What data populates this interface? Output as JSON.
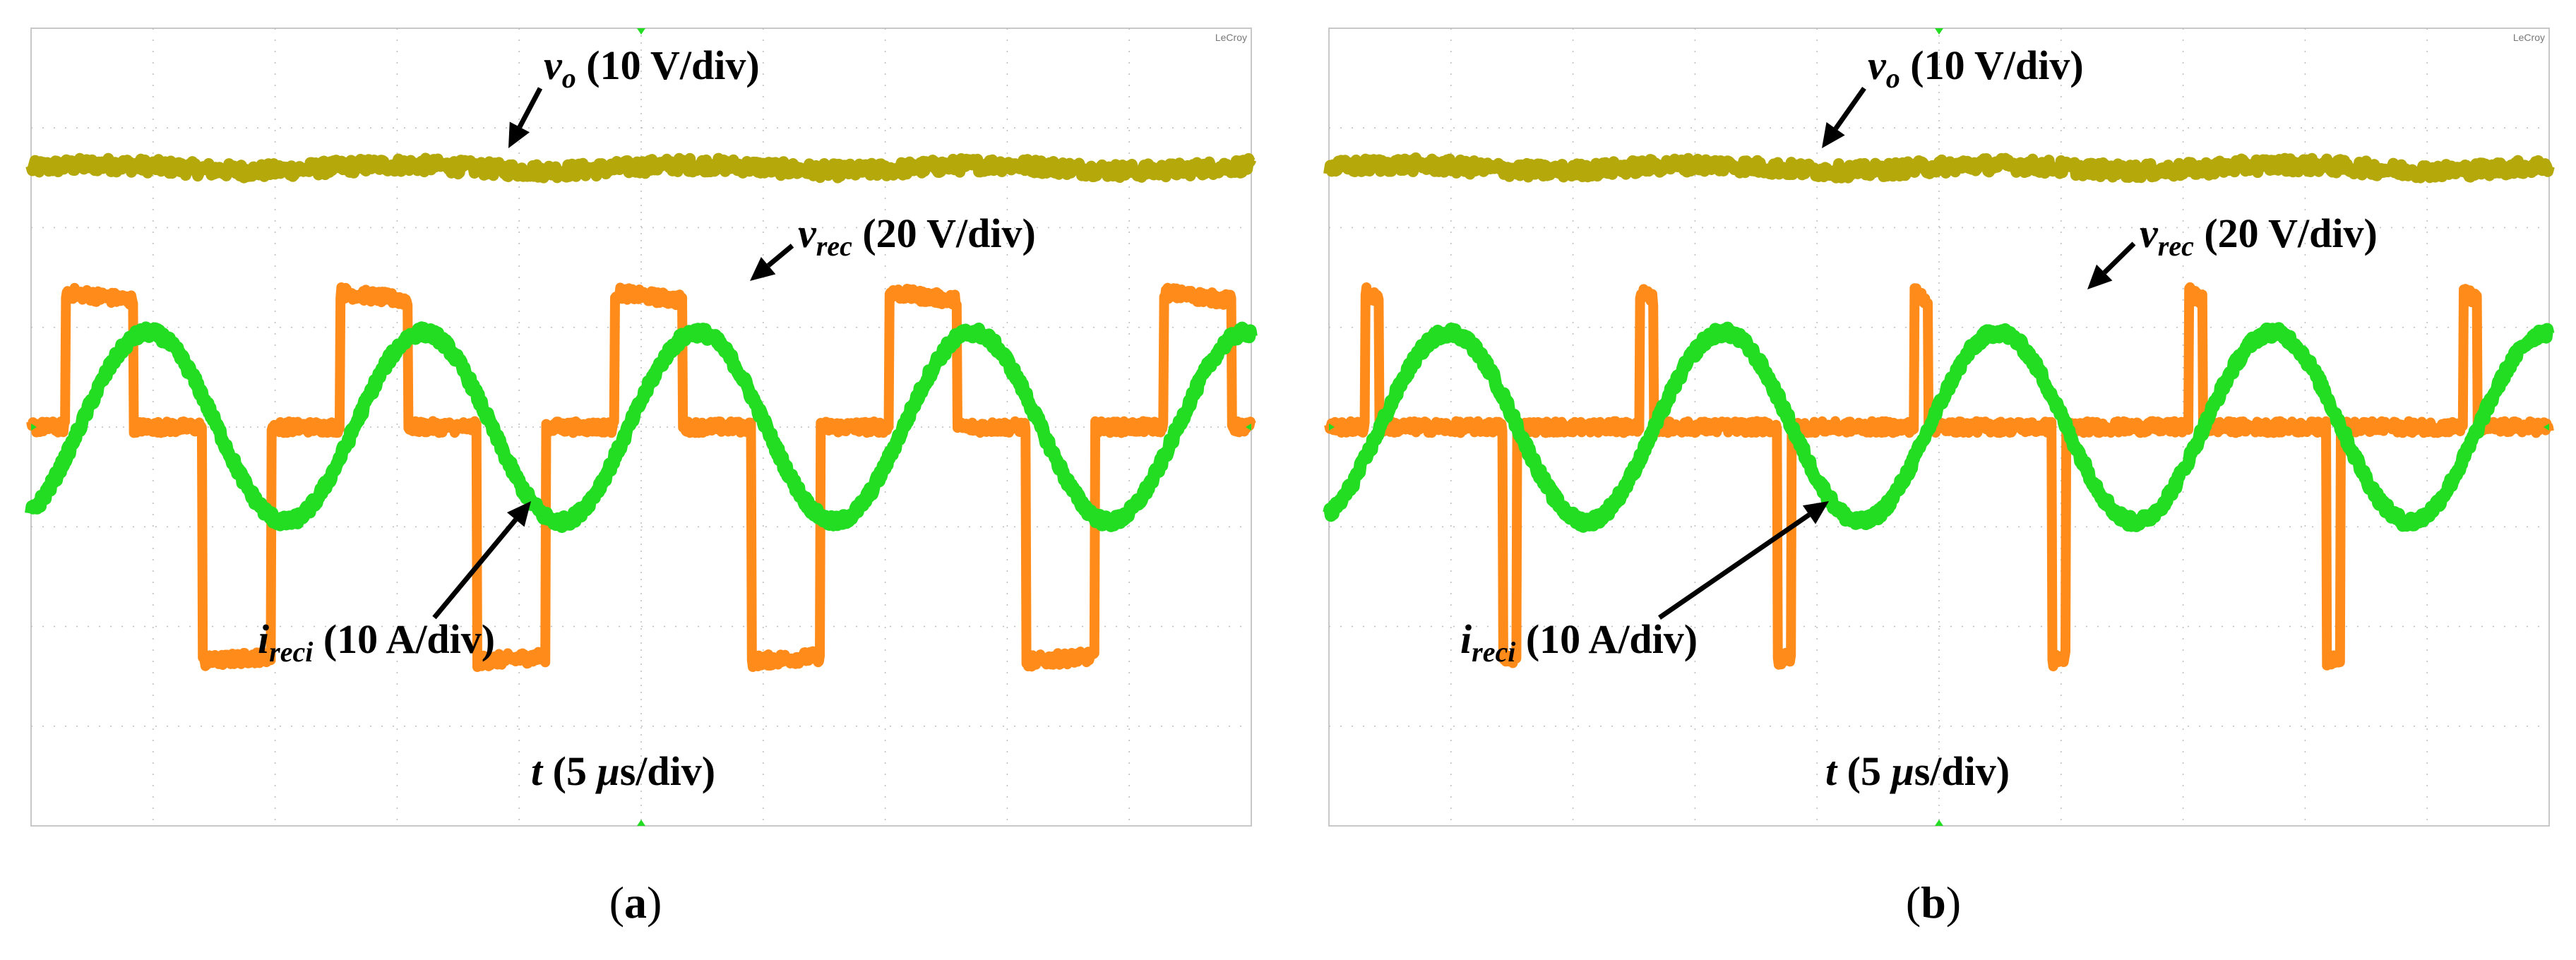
{
  "figure": {
    "panels": [
      {
        "id": "a",
        "caption_letter": "a",
        "brand": "LeCroy",
        "labels": {
          "vo": {
            "sym": "v",
            "sub": "o",
            "scale": "(10 V/div)"
          },
          "vrec": {
            "sym": "v",
            "sub": "rec",
            "scale": "(20 V/div)"
          },
          "ireci": {
            "sym": "i",
            "sub": "reci",
            "scale": "(10 A/div)"
          },
          "t": {
            "sym": "t",
            "scale_pre": "(5 ",
            "mu": "μ",
            "scale_post": "s/div)"
          }
        }
      },
      {
        "id": "b",
        "caption_letter": "b",
        "brand": "LeCroy",
        "labels": {
          "vo": {
            "sym": "v",
            "sub": "o",
            "scale": "(10 V/div)"
          },
          "vrec": {
            "sym": "v",
            "sub": "rec",
            "scale": "(20 V/div)"
          },
          "ireci": {
            "sym": "i",
            "sub": "reci",
            "scale": "(10 A/div)"
          },
          "t": {
            "sym": "t",
            "scale_pre": "(5 ",
            "mu": "μ",
            "scale_post": "s/div)"
          }
        }
      }
    ],
    "colors": {
      "grid": "#bdbdbd",
      "frame": "#c8c8c8",
      "vo": "#b5a80b",
      "vrec": "#ff8c1a",
      "ireci": "#22dd22",
      "marker": "#22dd22",
      "arrow": "#000000"
    }
  },
  "chart_data": [
    {
      "type": "line",
      "panel": "a",
      "x_divisions": 10,
      "y_divisions": 8,
      "x_unit": "5 μs/div",
      "series": [
        {
          "name": "vo",
          "scale": "10 V/div",
          "level_div": 6.6,
          "shape": "dc"
        },
        {
          "name": "vrec",
          "scale": "20 V/div",
          "shape": "quasi-square",
          "levels_div": [
            1.65,
            4.0,
            5.35
          ],
          "period_div": 2.25,
          "dwell_fraction": 0.5
        },
        {
          "name": "ireci",
          "scale": "10 A/div",
          "shape": "sine",
          "offset_div": 4.0,
          "amplitude_div": 0.95,
          "period_div": 2.25
        }
      ]
    },
    {
      "type": "line",
      "panel": "b",
      "x_divisions": 10,
      "y_divisions": 8,
      "x_unit": "5 μs/div",
      "series": [
        {
          "name": "vo",
          "scale": "10 V/div",
          "level_div": 6.6,
          "shape": "dc"
        },
        {
          "name": "vrec",
          "scale": "20 V/div",
          "shape": "quasi-square",
          "levels_div": [
            1.65,
            4.0,
            5.35
          ],
          "period_div": 2.25,
          "dwell_fraction": 0.1
        },
        {
          "name": "ireci",
          "scale": "10 A/div",
          "shape": "sine",
          "offset_div": 4.0,
          "amplitude_div": 0.95,
          "period_div": 2.25
        }
      ]
    }
  ]
}
